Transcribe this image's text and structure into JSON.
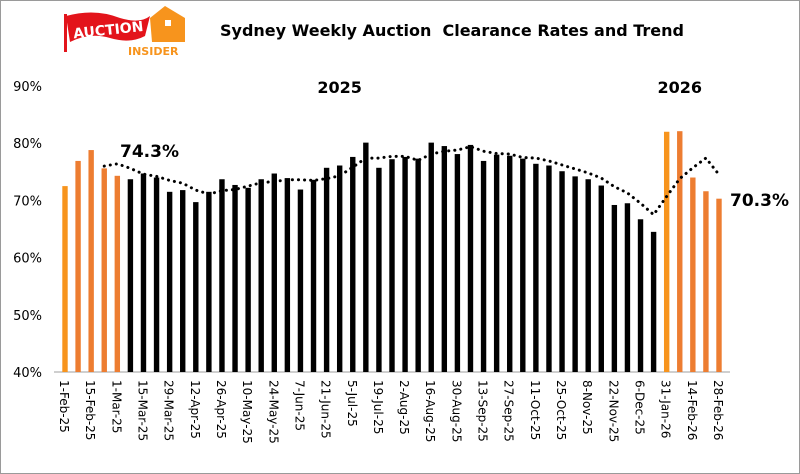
{
  "logo": {
    "text_top": "AUCTION",
    "text_bottom": "INSIDER",
    "flag_color": "#E3141B",
    "house_color": "#F7941D"
  },
  "chart_data": {
    "type": "bar",
    "title": "Sydney Weekly Auction  Clearance Rates and Trend",
    "xlabel": "",
    "ylabel": "",
    "ylim": [
      40,
      90
    ],
    "yticks": [
      "40%",
      "50%",
      "60%",
      "70%",
      "80%",
      "90%"
    ],
    "ytick_values": [
      40,
      50,
      60,
      70,
      80,
      90
    ],
    "grid": false,
    "legend": "none",
    "year_labels": [
      {
        "text": "2025",
        "at_index": 21
      },
      {
        "text": "2026",
        "at_index": 47
      }
    ],
    "annotations": [
      {
        "text": "74.3%",
        "at_index": 4
      },
      {
        "text": "70.3%",
        "at_index": 50
      }
    ],
    "x_tick_labels": [
      "1-Feb-25",
      "",
      "15-Feb-25",
      "",
      "1-Mar-25",
      "",
      "15-Mar-25",
      "",
      "29-Mar-25",
      "",
      "12-Apr-25",
      "",
      "26-Apr-25",
      "",
      "10-May-25",
      "",
      "24-May-25",
      "",
      "7-Jun-25",
      "",
      "21-Jun-25",
      "",
      "5-Jul-25",
      "",
      "19-Jul-25",
      "",
      "2-Aug-25",
      "",
      "16-Aug-25",
      "",
      "30-Aug-25",
      "",
      "13-Sep-25",
      "",
      "27-Sep-25",
      "",
      "11-Oct-25",
      "",
      "25-Oct-25",
      "",
      "8-Nov-25",
      "",
      "22-Nov-25",
      "",
      "6-Dec-25",
      "",
      "31-Jan-26",
      "",
      "14-Feb-26",
      "",
      "28-Feb-26"
    ],
    "series": [
      {
        "type": "bar",
        "values": [
          72.5,
          76.9,
          78.8,
          75.6,
          74.3,
          73.7,
          74.7,
          74.0,
          71.5,
          71.8,
          69.7,
          71.5,
          73.7,
          72.7,
          72.2,
          73.7,
          74.7,
          73.9,
          71.9,
          73.6,
          75.7,
          76.1,
          77.6,
          80.1,
          75.7,
          77.2,
          77.6,
          77.3,
          80.1,
          79.5,
          78.1,
          79.7,
          76.9,
          78.0,
          77.8,
          77.3,
          76.4,
          76.1,
          75.1,
          74.2,
          73.7,
          72.6,
          69.2,
          69.5,
          66.7,
          64.5,
          82.0,
          82.1,
          74.0,
          71.6,
          70.3
        ],
        "colors": [
          "#F7941D",
          "#ED7D31",
          "#ED7D31",
          "#ED7D31",
          "#ED7D31",
          "#000000",
          "#000000",
          "#000000",
          "#000000",
          "#000000",
          "#000000",
          "#000000",
          "#000000",
          "#000000",
          "#000000",
          "#000000",
          "#000000",
          "#000000",
          "#000000",
          "#000000",
          "#000000",
          "#000000",
          "#000000",
          "#000000",
          "#000000",
          "#000000",
          "#000000",
          "#000000",
          "#000000",
          "#000000",
          "#000000",
          "#000000",
          "#000000",
          "#000000",
          "#000000",
          "#000000",
          "#000000",
          "#000000",
          "#000000",
          "#000000",
          "#000000",
          "#000000",
          "#000000",
          "#000000",
          "#000000",
          "#000000",
          "#F7941D",
          "#ED7D31",
          "#ED7D31",
          "#ED7D31",
          "#ED7D31"
        ]
      },
      {
        "type": "line",
        "style": "dotted",
        "color": "#000000",
        "values": [
          null,
          null,
          null,
          76.0,
          76.4,
          75.6,
          74.6,
          74.2,
          73.5,
          73.0,
          71.8,
          71.1,
          71.7,
          71.9,
          72.5,
          73.1,
          73.3,
          73.6,
          73.6,
          73.5,
          73.8,
          74.3,
          75.8,
          77.4,
          77.4,
          77.7,
          77.7,
          77.0,
          78.1,
          78.6,
          78.8,
          79.4,
          78.6,
          78.2,
          78.1,
          77.5,
          77.4,
          76.9,
          76.2,
          75.5,
          74.8,
          73.9,
          72.4,
          71.3,
          69.5,
          67.5,
          70.7,
          73.8,
          75.7,
          77.4,
          74.5
        ]
      }
    ]
  }
}
